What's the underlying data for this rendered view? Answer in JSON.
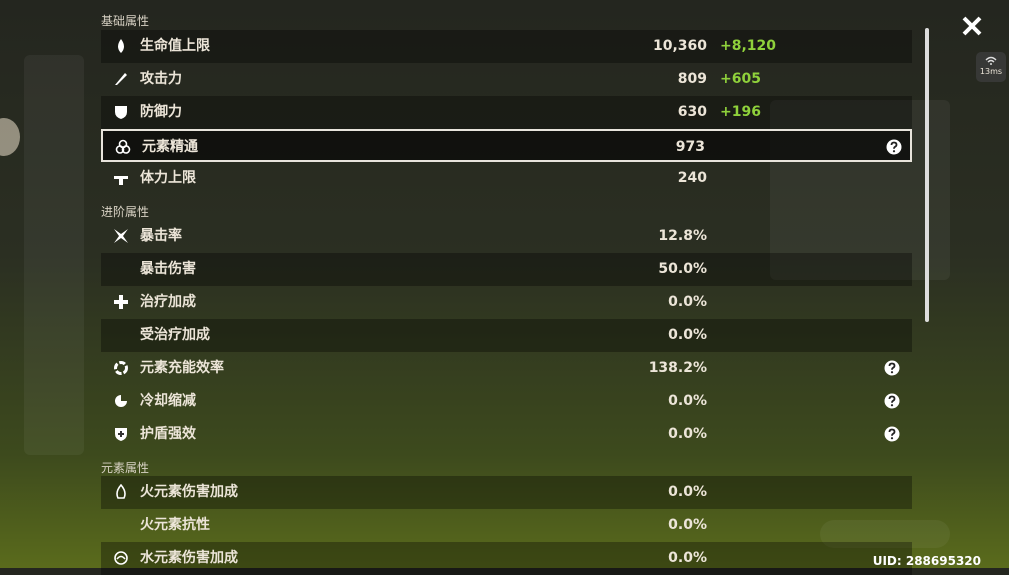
{
  "sections": [
    {
      "title": "基础属性",
      "rows": [
        {
          "name": "生命值上限",
          "value": "10,360",
          "bonus": "+8,120"
        },
        {
          "name": "攻击力",
          "value": "809",
          "bonus": "+605"
        },
        {
          "name": "防御力",
          "value": "630",
          "bonus": "+196"
        },
        {
          "name": "元素精通",
          "value": "973"
        },
        {
          "name": "体力上限",
          "value": "240"
        }
      ]
    },
    {
      "title": "进阶属性",
      "rows": [
        {
          "name": "暴击率",
          "value": "12.8%"
        },
        {
          "name": "暴击伤害",
          "value": "50.0%"
        },
        {
          "name": "治疗加成",
          "value": "0.0%"
        },
        {
          "name": "受治疗加成",
          "value": "0.0%"
        },
        {
          "name": "元素充能效率",
          "value": "138.2%"
        },
        {
          "name": "冷却缩减",
          "value": "0.0%"
        },
        {
          "name": "护盾强效",
          "value": "0.0%"
        }
      ]
    },
    {
      "title": "元素属性",
      "rows": [
        {
          "name": "火元素伤害加成",
          "value": "0.0%"
        },
        {
          "name": "火元素抗性",
          "value": "0.0%"
        },
        {
          "name": "水元素伤害加成",
          "value": "0.0%"
        }
      ]
    }
  ],
  "ping": "13ms",
  "uid": "UID: 288695320"
}
